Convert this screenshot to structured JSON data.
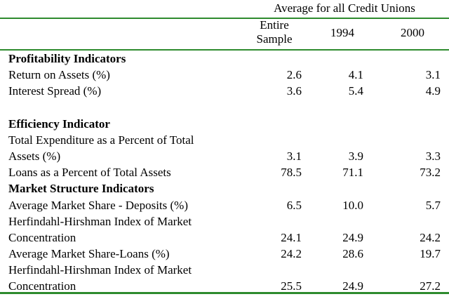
{
  "header": {
    "group_title": "Average for all Credit Unions",
    "columns": [
      "Entire\nSample",
      "1994",
      "2000"
    ],
    "col1_line1": "Entire",
    "col1_line2": "Sample",
    "col2": "1994",
    "col3": "2000"
  },
  "rows": [
    {
      "type": "section",
      "label": "Profitability Indicators",
      "values": [
        "",
        "",
        ""
      ]
    },
    {
      "type": "data",
      "label": "Return on Assets (%)",
      "values": [
        "2.6",
        "4.1",
        "3.1"
      ]
    },
    {
      "type": "data",
      "label": "Interest Spread (%)",
      "values": [
        "3.6",
        "5.4",
        "4.9"
      ]
    },
    {
      "type": "blank",
      "label": "",
      "values": [
        "",
        "",
        ""
      ]
    },
    {
      "type": "section",
      "label": "Efficiency Indicator",
      "values": [
        "",
        "",
        ""
      ]
    },
    {
      "type": "data",
      "label": "Total Expenditure as a Percent of Total",
      "values": [
        "",
        "",
        ""
      ]
    },
    {
      "type": "data",
      "label": "Assets (%)",
      "values": [
        "3.1",
        "3.9",
        "3.3"
      ]
    },
    {
      "type": "data",
      "label": "Loans as a Percent of Total Assets",
      "values": [
        "78.5",
        "71.1",
        "73.2"
      ]
    },
    {
      "type": "section",
      "label": "Market Structure Indicators",
      "values": [
        "",
        "",
        ""
      ]
    },
    {
      "type": "data",
      "label": "Average Market Share - Deposits (%)",
      "values": [
        "6.5",
        "10.0",
        "5.7"
      ]
    },
    {
      "type": "data",
      "label": "Herfindahl-Hirshman Index of Market",
      "values": [
        "",
        "",
        ""
      ]
    },
    {
      "type": "data",
      "label": "Concentration",
      "values": [
        "24.1",
        "24.9",
        "24.2"
      ]
    },
    {
      "type": "data",
      "label": "Average Market Share-Loans (%)",
      "values": [
        "24.2",
        "28.6",
        "19.7"
      ]
    },
    {
      "type": "data",
      "label": "Herfindahl-Hirshman Index of Market",
      "values": [
        "",
        "",
        ""
      ]
    },
    {
      "type": "data",
      "label": "Concentration",
      "values": [
        "25.5",
        "24.9",
        "27.2"
      ]
    }
  ],
  "colors": {
    "rule": "#2e8b2e",
    "text": "#000000"
  }
}
